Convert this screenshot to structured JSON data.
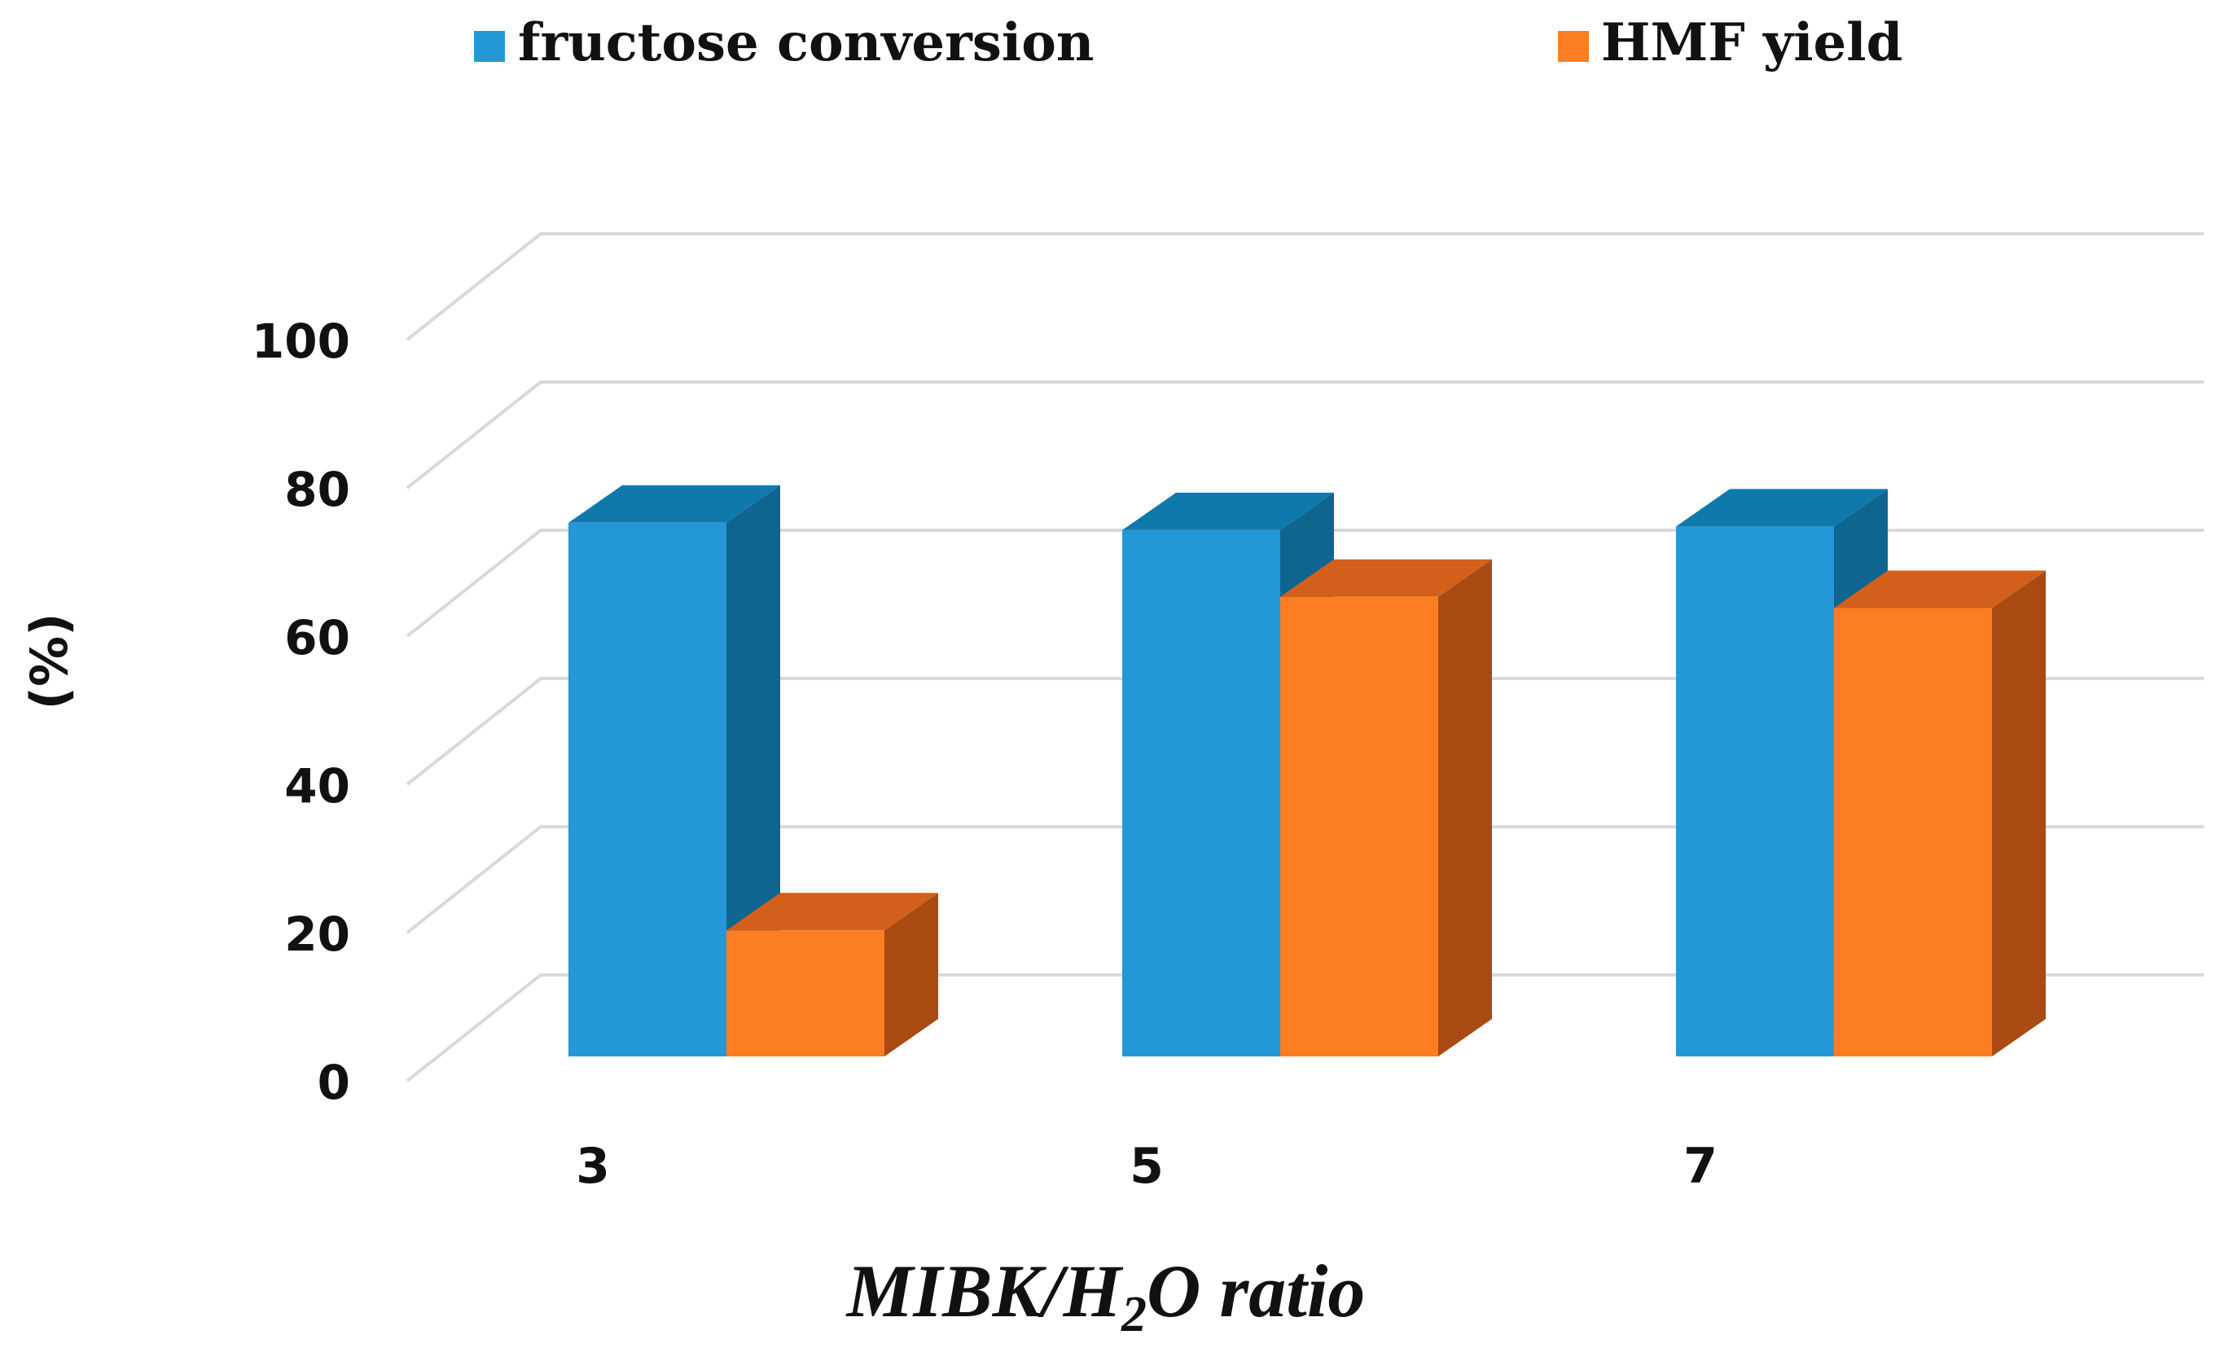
{
  "chart_data": {
    "type": "bar",
    "style": "3d-clustered-column",
    "categories": [
      "3",
      "5",
      "7"
    ],
    "series": [
      {
        "name": "fructose conversion",
        "values": [
          72,
          71,
          71.5
        ],
        "color": "#2498d6",
        "side_color": "#0d6590",
        "top_color": "#1079ab"
      },
      {
        "name": "HMF yield",
        "values": [
          17,
          62,
          60.5
        ],
        "color": "#fd7e22",
        "side_color": "#a94a12",
        "top_color": "#d2601a"
      }
    ],
    "ylabel": "(%)",
    "xlabel": {
      "main": "MIBK/H",
      "sub": "2",
      "rest": "O ratio"
    },
    "ylim": [
      0,
      100
    ],
    "yticks": [
      0,
      20,
      40,
      60,
      80,
      100
    ],
    "grid": true,
    "legend_position": "top"
  }
}
